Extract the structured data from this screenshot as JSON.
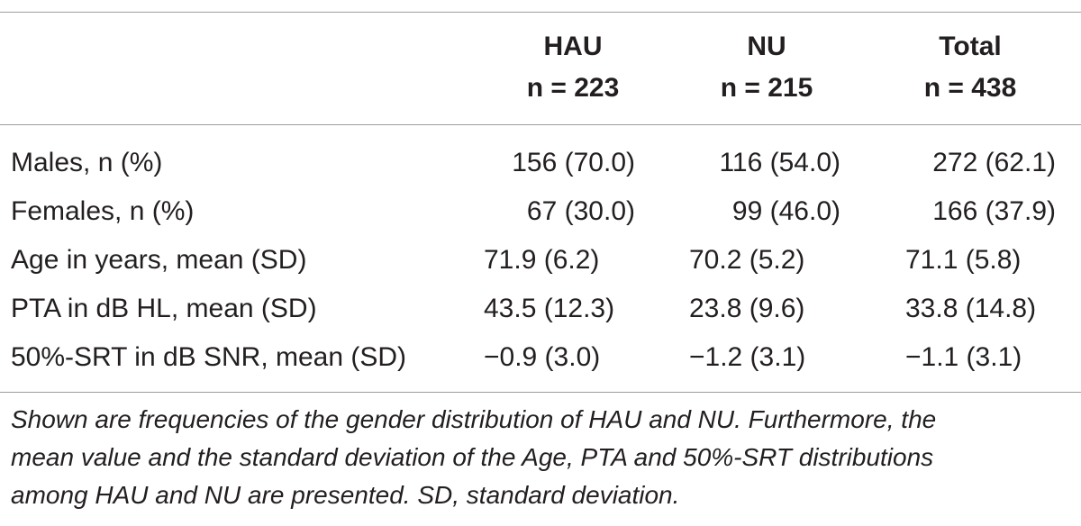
{
  "table": {
    "columns": [
      {
        "name": "HAU",
        "n": "n = 223"
      },
      {
        "name": "NU",
        "n": "n = 215"
      },
      {
        "name": "Total",
        "n": "n = 438"
      }
    ],
    "rows": [
      {
        "label": "Males, n (%)",
        "cells": [
          "156 (70.0)",
          "116 (54.0)",
          "272 (62.1)"
        ]
      },
      {
        "label": "Females, n (%)",
        "cells": [
          "67 (30.0)",
          "99 (46.0)",
          "166 (37.9)"
        ]
      },
      {
        "label": "Age in years, mean (SD)",
        "cells": [
          "71.9 (6.2)",
          "70.2 (5.2)",
          "71.1 (5.8)"
        ]
      },
      {
        "label": "PTA in dB HL, mean (SD)",
        "cells": [
          "43.5 (12.3)",
          "23.8 (9.6)",
          "33.8 (14.8)"
        ]
      },
      {
        "label": "50%-SRT in dB SNR, mean (SD)",
        "cells": [
          "−0.9 (3.0)",
          "−1.2 (3.1)",
          "−1.1 (3.1)"
        ]
      }
    ],
    "footnote": [
      "Shown are frequencies of the gender distribution of HAU and NU. Furthermore, the",
      "mean value and the standard deviation of the Age, PTA and 50%-SRT distributions",
      "among HAU and NU are presented. SD, standard deviation."
    ]
  }
}
